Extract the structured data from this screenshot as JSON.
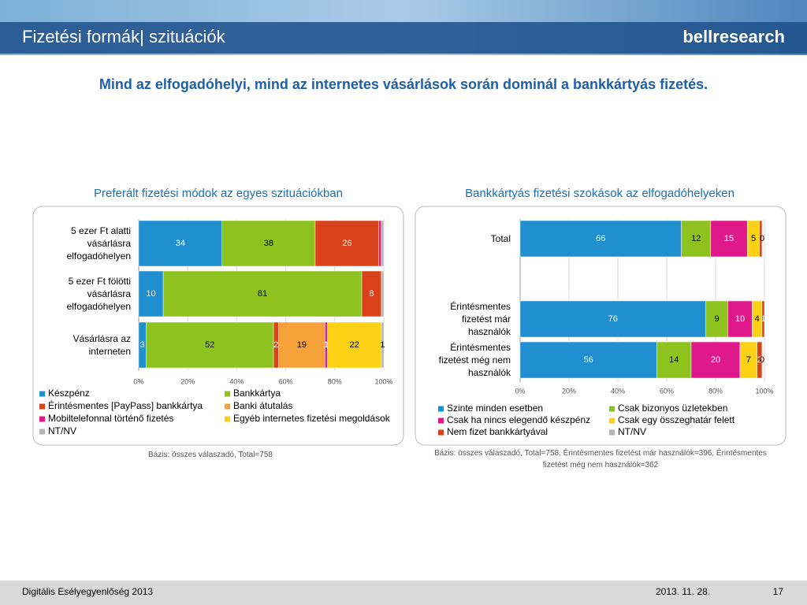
{
  "header": {
    "title": "Fizetési formák| szituációk",
    "logo": "bellresearch"
  },
  "headline": "Mind az elfogadóhelyi, mind az internetes vásárlások során dominál a bankkártyás fizetés.",
  "chart_data": [
    {
      "type": "stacked-barh",
      "title": "Preferált fizetési módok az egyes szituációkban",
      "categories": [
        "5 ezer Ft alatti vásárlásra elfogadóhelyen",
        "5 ezer Ft fölötti vásárlásra elfogadóhelyen",
        "Vásárlásra az interneten"
      ],
      "series": [
        {
          "name": "Készpénz",
          "color": "#1f8fd0",
          "values": [
            34,
            10,
            3
          ]
        },
        {
          "name": "Bankkártya",
          "color": "#8dc21f",
          "values": [
            38,
            81,
            52
          ]
        },
        {
          "name": "Érintésmentes [PayPass] bankkártya",
          "color": "#d9421a",
          "values": [
            26,
            8,
            2
          ]
        },
        {
          "name": "Banki átutalás",
          "color": "#f7a13b",
          "values": [
            0,
            0,
            19
          ]
        },
        {
          "name": "Mobiltelefonnal történő fizetés",
          "color": "#e0198a",
          "values": [
            1,
            0,
            1
          ]
        },
        {
          "name": "Egyéb internetes fizetési megoldások",
          "color": "#fbd116",
          "values": [
            0,
            0,
            22
          ]
        },
        {
          "name": "NT/NV",
          "color": "#b4b4b4",
          "values": [
            1,
            1,
            1
          ]
        }
      ],
      "value_labels": [
        [
          "34",
          "10",
          "3"
        ],
        [
          "38",
          "81",
          "52"
        ],
        [
          "26",
          "8",
          "2"
        ],
        [
          null,
          null,
          "19"
        ],
        [
          null,
          null,
          "1"
        ],
        [
          null,
          null,
          "22"
        ],
        [
          null,
          null,
          "1"
        ]
      ],
      "xlim": [
        0,
        100
      ],
      "xticks": [
        {
          "value": 0,
          "label": "0%"
        },
        {
          "value": 20,
          "label": "20%"
        },
        {
          "value": 40,
          "label": "40%"
        },
        {
          "value": 60,
          "label": "60%"
        },
        {
          "value": 80,
          "label": "80%"
        },
        {
          "value": 100,
          "label": "100%"
        }
      ],
      "grid": true,
      "note": "Bázis: összes válaszadó, Total=758"
    },
    {
      "type": "stacked-barh",
      "title": "Bankkártyás fizetési szokások az elfogadóhelyeken",
      "categories": [
        "Total",
        "Érintésmentes fizetést már használók",
        "Érintésmentes fizetést még nem használók"
      ],
      "series": [
        {
          "name": "Szinte minden esetben",
          "color": "#1f8fd0",
          "values": [
            66,
            76,
            56
          ]
        },
        {
          "name": "Csak bizonyos üzletekben",
          "color": "#8dc21f",
          "values": [
            12,
            9,
            14
          ]
        },
        {
          "name": "Csak ha nincs elegendő készpénz",
          "color": "#e0198a",
          "values": [
            15,
            10,
            20
          ]
        },
        {
          "name": "Csak egy összeghatár felett",
          "color": "#fbd116",
          "values": [
            5,
            4,
            7
          ]
        },
        {
          "name": "Nem fizet bankkártyával",
          "color": "#d9421a",
          "values": [
            1,
            1,
            2
          ]
        },
        {
          "name": "NT/NV",
          "color": "#b4b4b4",
          "values": [
            0,
            0,
            0
          ]
        }
      ],
      "value_labels": [
        [
          "66",
          "76",
          "56"
        ],
        [
          "12",
          "9",
          "14"
        ],
        [
          "15",
          "10",
          "20"
        ],
        [
          "5",
          "4",
          "7"
        ],
        [
          null,
          "1",
          "2"
        ],
        [
          "0",
          null,
          "0"
        ]
      ],
      "xlim": [
        0,
        100
      ],
      "xticks": [
        {
          "value": 0,
          "label": "0%"
        },
        {
          "value": 20,
          "label": "20%"
        },
        {
          "value": 40,
          "label": "40%"
        },
        {
          "value": 60,
          "label": "60%"
        },
        {
          "value": 80,
          "label": "80%"
        },
        {
          "value": 100,
          "label": "100%"
        }
      ],
      "grid": true,
      "note": "Bázis: összes válaszadó, Total=758, Érintésmentes fizetést már használók=396, Érintésmentes fizetést még nem használók=362"
    }
  ],
  "footer": {
    "left": "Digitális Esélyegyenlőség 2013",
    "date": "2013. 11. 28.",
    "page": "17"
  }
}
